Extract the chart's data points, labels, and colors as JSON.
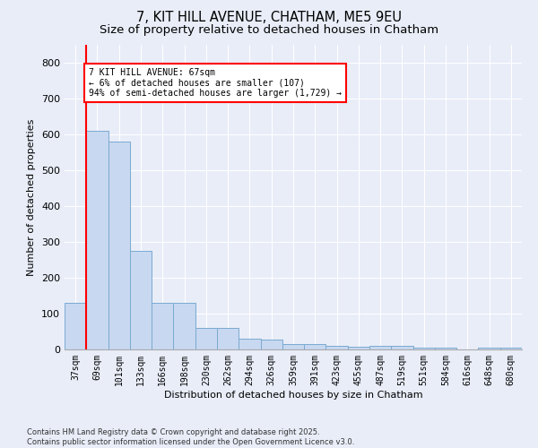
{
  "title_line1": "7, KIT HILL AVENUE, CHATHAM, ME5 9EU",
  "title_line2": "Size of property relative to detached houses in Chatham",
  "xlabel": "Distribution of detached houses by size in Chatham",
  "ylabel": "Number of detached properties",
  "categories": [
    "37sqm",
    "69sqm",
    "101sqm",
    "133sqm",
    "166sqm",
    "198sqm",
    "230sqm",
    "262sqm",
    "294sqm",
    "326sqm",
    "359sqm",
    "391sqm",
    "423sqm",
    "455sqm",
    "487sqm",
    "519sqm",
    "551sqm",
    "584sqm",
    "616sqm",
    "648sqm",
    "680sqm"
  ],
  "values": [
    130,
    610,
    580,
    275,
    130,
    130,
    60,
    60,
    30,
    28,
    15,
    15,
    10,
    8,
    10,
    10,
    5,
    5,
    0,
    5,
    5
  ],
  "bar_color": "#c8d8f0",
  "bar_edge_color": "#7aaad0",
  "vline_color": "red",
  "annotation_text": "7 KIT HILL AVENUE: 67sqm\n← 6% of detached houses are smaller (107)\n94% of semi-detached houses are larger (1,729) →",
  "annotation_box_color": "white",
  "annotation_box_edge_color": "red",
  "ylim": [
    0,
    850
  ],
  "yticks": [
    0,
    100,
    200,
    300,
    400,
    500,
    600,
    700,
    800
  ],
  "footnote": "Contains HM Land Registry data © Crown copyright and database right 2025.\nContains public sector information licensed under the Open Government Licence v3.0.",
  "background_color": "#e8edf8",
  "plot_bg_color": "#e8edf8",
  "title_fontsize": 10.5,
  "subtitle_fontsize": 9.5,
  "annotation_fontsize": 7,
  "footnote_fontsize": 6,
  "axis_label_fontsize": 8,
  "tick_fontsize": 7
}
